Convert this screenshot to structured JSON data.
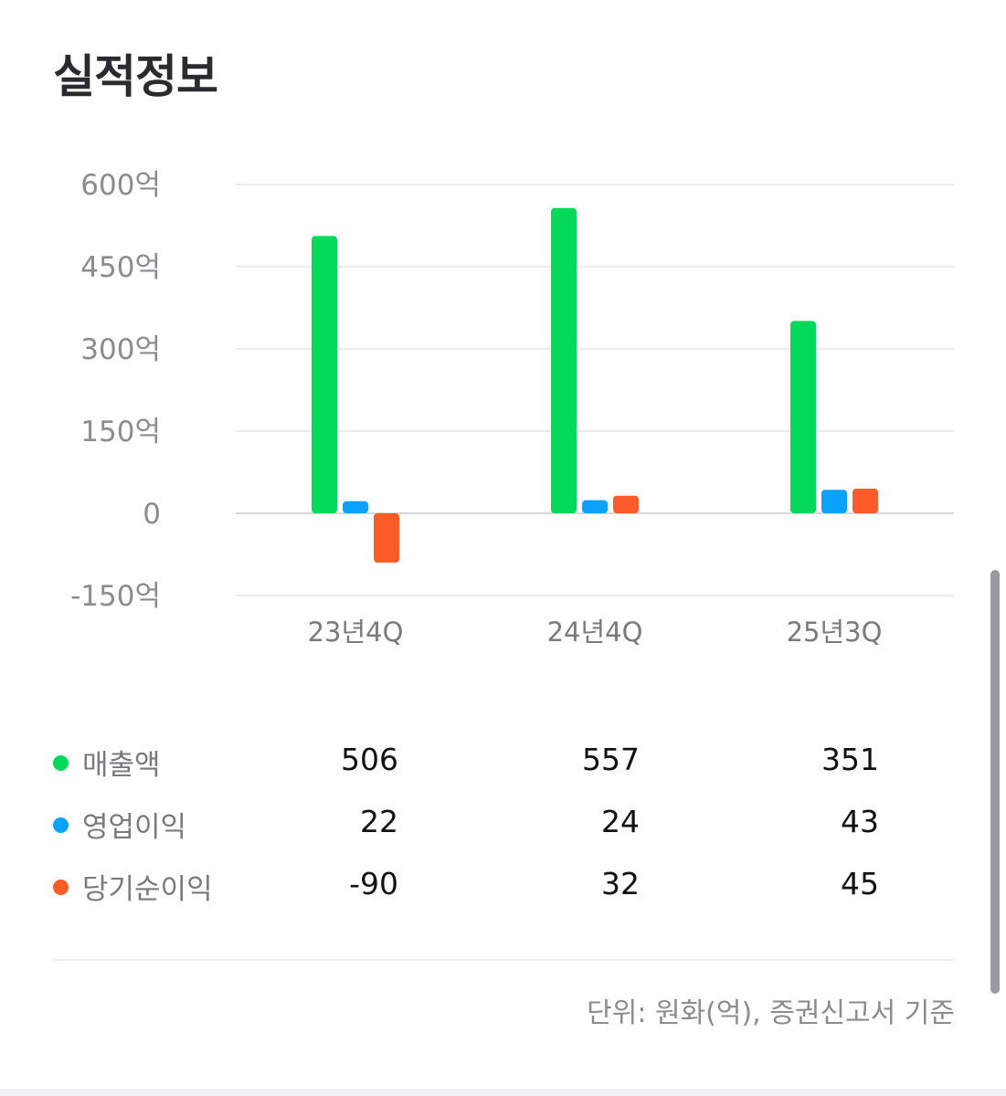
{
  "title": "실적정보",
  "chart_data": {
    "type": "bar",
    "categories": [
      "23년4Q",
      "24년4Q",
      "25년3Q"
    ],
    "series": [
      {
        "name": "매출액",
        "color": "#04d95c",
        "values": [
          506,
          557,
          351
        ]
      },
      {
        "name": "영업이익",
        "color": "#0aa2fb",
        "values": [
          22,
          24,
          43
        ]
      },
      {
        "name": "당기순이익",
        "color": "#fd5b27",
        "values": [
          -90,
          32,
          45
        ]
      }
    ],
    "yticks": [
      600,
      450,
      300,
      150,
      0,
      -150
    ],
    "ytick_labels": [
      "600억",
      "450억",
      "300억",
      "150억",
      "0",
      "-150억"
    ],
    "ylim": [
      -150,
      600
    ],
    "grid": true,
    "xlabel": "",
    "ylabel": ""
  },
  "legend_table": {
    "rows": [
      {
        "name": "매출액",
        "color": "#04d95c",
        "values": [
          "506",
          "557",
          "351"
        ]
      },
      {
        "name": "영업이익",
        "color": "#0aa2fb",
        "values": [
          "22",
          "24",
          "43"
        ]
      },
      {
        "name": "당기순이익",
        "color": "#fd5b27",
        "values": [
          "-90",
          "32",
          "45"
        ]
      }
    ]
  },
  "footer_note": "단위: 원화(억), 증권신고서 기준"
}
